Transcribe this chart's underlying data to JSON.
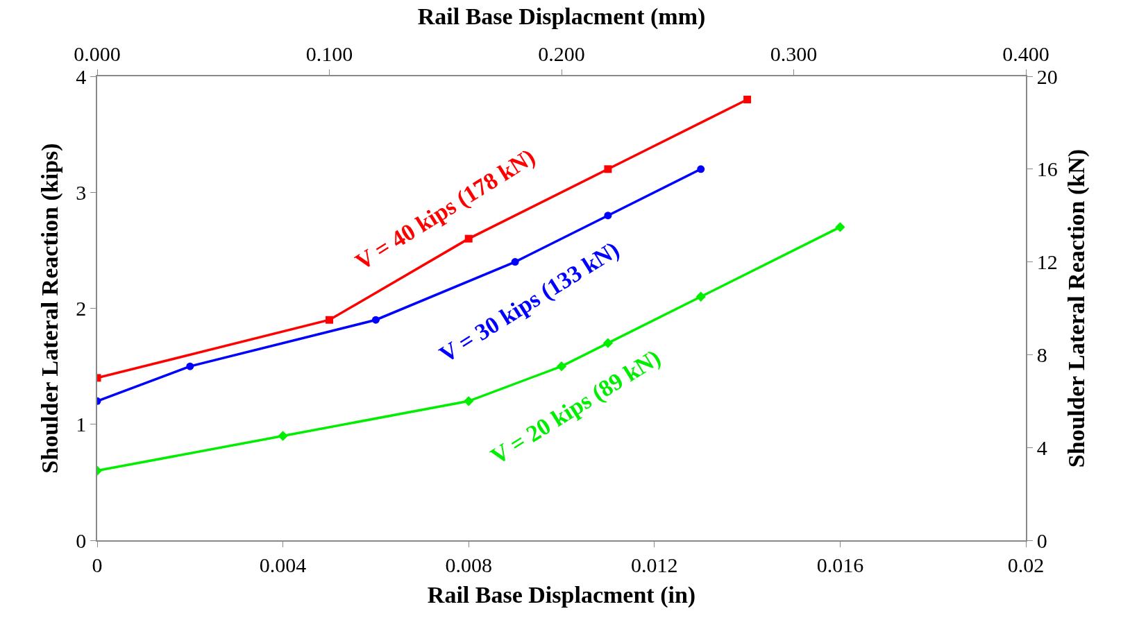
{
  "chart_data": {
    "type": "line",
    "xlabel": "Rail Base Displacment (in)",
    "x2label": "Rail Base Displacment (mm)",
    "ylabel": "Shoulder Lateral Reaction (kips)",
    "y2label": "Shoulder Lateral Reaction (kN)",
    "xlim": [
      0,
      0.02
    ],
    "xticks": [
      0,
      0.004,
      0.008,
      0.012,
      0.016,
      0.02
    ],
    "x2lim": [
      0,
      0.4
    ],
    "x2ticks": [
      {
        "value": 0,
        "label": "0.000"
      },
      {
        "value": 0.1,
        "label": "0.100"
      },
      {
        "value": 0.2,
        "label": "0.200"
      },
      {
        "value": 0.3,
        "label": "0.300"
      },
      {
        "value": 0.4,
        "label": "0.400"
      }
    ],
    "ylim": [
      0,
      4
    ],
    "yticks": [
      0,
      1,
      2,
      3,
      4
    ],
    "y2lim": [
      0,
      20
    ],
    "y2ticks": [
      0,
      4,
      8,
      12,
      16,
      20
    ],
    "legend": false,
    "line_style": "solid",
    "series": [
      {
        "name": "V = 40 kips (178 kN)",
        "color": "#ff0000",
        "marker": "square",
        "x": [
          0,
          0.005,
          0.008,
          0.011,
          0.014
        ],
        "values": [
          1.4,
          1.9,
          2.6,
          3.2,
          3.8
        ]
      },
      {
        "name": "V = 30 kips (133 kN)",
        "color": "#0000ff",
        "marker": "circle",
        "x": [
          0,
          0.002,
          0.006,
          0.009,
          0.011,
          0.013
        ],
        "values": [
          1.2,
          1.5,
          1.9,
          2.4,
          2.8,
          3.2
        ]
      },
      {
        "name": "V = 20 kips (89 kN)",
        "color": "#00ee00",
        "marker": "diamond",
        "x": [
          0,
          0.004,
          0.008,
          0.01,
          0.011,
          0.013,
          0.016
        ],
        "values": [
          0.6,
          0.9,
          1.2,
          1.5,
          1.7,
          2.1,
          2.7
        ]
      }
    ]
  }
}
